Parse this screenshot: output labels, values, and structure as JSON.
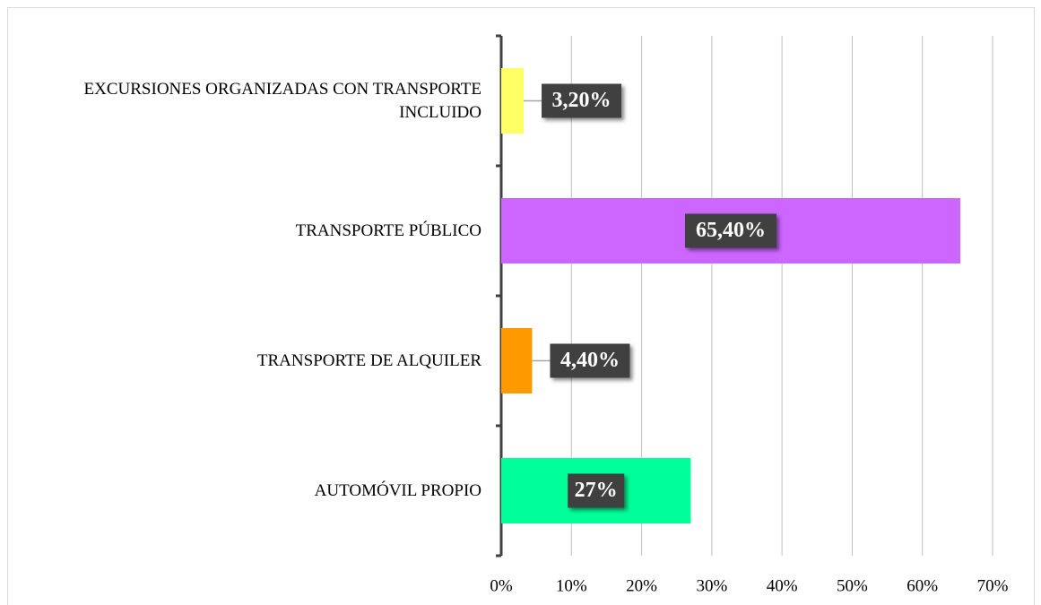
{
  "chart_data": {
    "type": "bar",
    "orientation": "horizontal",
    "categories": [
      "EXCURSIONES ORGANIZADAS CON TRANSPORTE INCLUIDO",
      "TRANSPORTE PÚBLICO",
      "TRANSPORTE DE ALQUILER",
      "AUTOMÓVIL PROPIO"
    ],
    "values": [
      3.2,
      65.4,
      4.4,
      27
    ],
    "value_labels": [
      "3,20%",
      "65,40%",
      "4,40%",
      "27%"
    ],
    "colors": [
      "#ffff66",
      "#cc66ff",
      "#ff9900",
      "#00ff99"
    ],
    "xlim": [
      0,
      70
    ],
    "xticks": [
      {
        "value": 0,
        "label": "0%"
      },
      {
        "value": 10,
        "label": "10%"
      },
      {
        "value": 20,
        "label": "20%"
      },
      {
        "value": 30,
        "label": "30%"
      },
      {
        "value": 40,
        "label": "40%"
      },
      {
        "value": 50,
        "label": "50%"
      },
      {
        "value": 60,
        "label": "60%"
      },
      {
        "value": 70,
        "label": "70%"
      }
    ],
    "grid": true
  }
}
